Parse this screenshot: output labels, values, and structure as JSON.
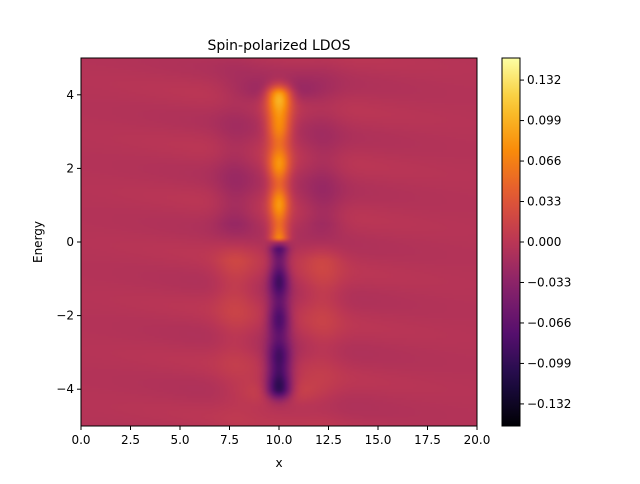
{
  "chart_data": {
    "type": "heatmap",
    "title": "Spin-polarized LDOS",
    "xlabel": "x",
    "ylabel": "Energy",
    "xlim": [
      0,
      20
    ],
    "ylim": [
      -5,
      5
    ],
    "x_ticks": [
      0,
      2.5,
      5,
      7.5,
      10,
      12.5,
      15,
      17.5,
      20
    ],
    "x_tick_labels": [
      "0.0",
      "2.5",
      "5.0",
      "7.5",
      "10.0",
      "12.5",
      "15.0",
      "17.5",
      "20.0"
    ],
    "y_ticks": [
      -4,
      -2,
      0,
      2,
      4
    ],
    "y_tick_labels": [
      "−4",
      "−2",
      "0",
      "2",
      "4"
    ],
    "colormap": "inferno",
    "colorbar": {
      "range": [
        -0.15,
        0.15
      ],
      "ticks": [
        -0.132,
        -0.099,
        -0.066,
        -0.033,
        0,
        0.033,
        0.066,
        0.099,
        0.132
      ],
      "tick_labels": [
        "−0.132",
        "−0.099",
        "−0.066",
        "−0.033",
        "0.000",
        "0.033",
        "0.066",
        "0.099",
        "0.132"
      ]
    },
    "features": {
      "center_x": 10,
      "positive_band": {
        "energy_range": [
          0,
          4
        ],
        "peak_value": 0.15,
        "peak_energy": 3.8
      },
      "negative_band": {
        "energy_range": [
          -4,
          0
        ],
        "peak_value": -0.15,
        "peak_energy": -3.8
      },
      "background_value": 0.0
    }
  }
}
